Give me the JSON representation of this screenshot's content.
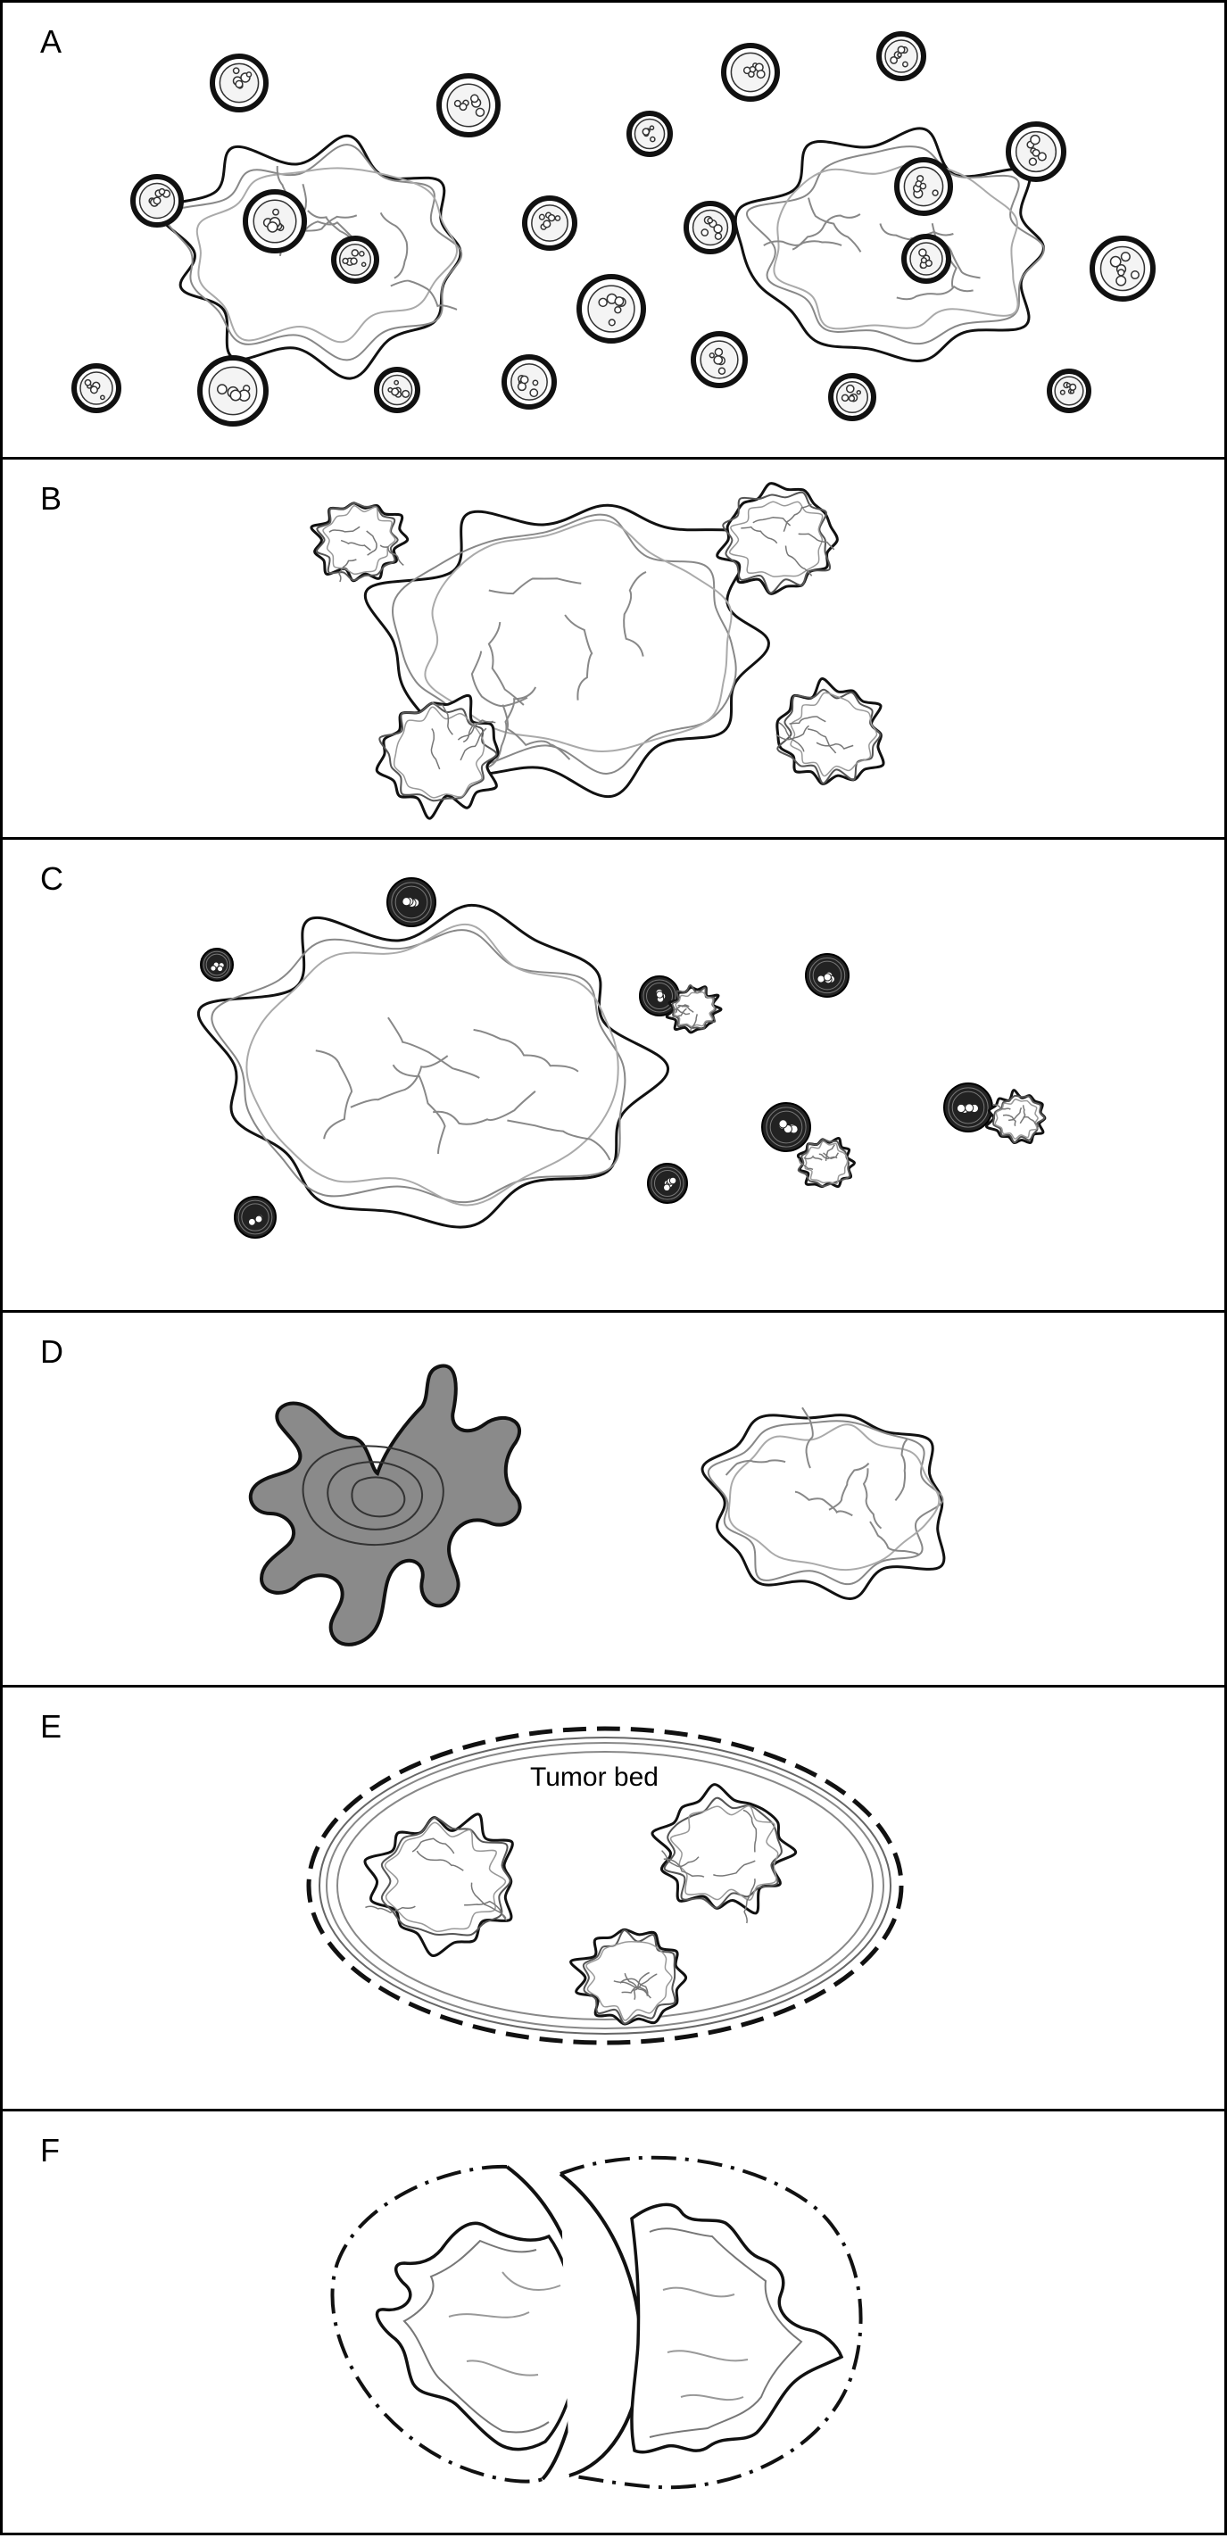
{
  "panels": [
    {
      "label": "A"
    },
    {
      "label": "B"
    },
    {
      "label": "C"
    },
    {
      "label": "D"
    },
    {
      "label": "E",
      "region_label": "Tumor bed"
    },
    {
      "label": "F"
    }
  ],
  "colors": {
    "border": "#000000",
    "outline": "#111111",
    "inner_lines": "#777777",
    "dead_cell_fill": "#8a8a8a",
    "background": "#ffffff"
  }
}
